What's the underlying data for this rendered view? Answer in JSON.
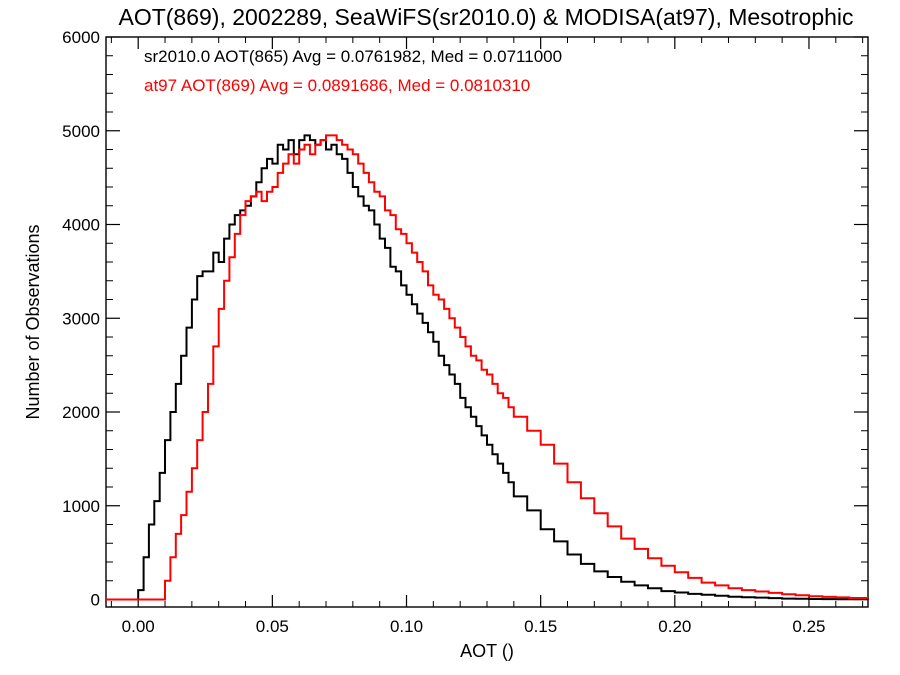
{
  "chart_data": {
    "type": "line",
    "title": "AOT(869), 2002289, SeaWiFS(sr2010.0) & MODISA(at97), Mesotrophic",
    "xlabel": "AOT ()",
    "ylabel": "Number of Observations",
    "xlim": [
      -0.012,
      0.272
    ],
    "ylim": [
      -80,
      6000
    ],
    "xticks": [
      "0.00",
      "0.05",
      "0.10",
      "0.15",
      "0.20",
      "0.25"
    ],
    "yticks": [
      "0",
      "1000",
      "2000",
      "3000",
      "4000",
      "5000",
      "6000"
    ],
    "grid": false,
    "step": true,
    "annotations": [
      {
        "text": "sr2010.0 AOT(865) Avg = 0.0761982, Med = 0.0711000",
        "color": "#000000"
      },
      {
        "text": "at97 AOT(869) Avg = 0.0891686, Med = 0.0810310",
        "color": "#ff0000"
      }
    ],
    "series": [
      {
        "color": "#000000",
        "x": [
          -0.012,
          -0.002,
          0.0,
          0.002,
          0.004,
          0.006,
          0.008,
          0.01,
          0.012,
          0.014,
          0.016,
          0.018,
          0.02,
          0.022,
          0.024,
          0.026,
          0.028,
          0.03,
          0.032,
          0.034,
          0.036,
          0.038,
          0.04,
          0.042,
          0.044,
          0.046,
          0.048,
          0.05,
          0.052,
          0.054,
          0.056,
          0.058,
          0.06,
          0.062,
          0.064,
          0.066,
          0.068,
          0.07,
          0.072,
          0.074,
          0.076,
          0.078,
          0.08,
          0.082,
          0.084,
          0.086,
          0.088,
          0.09,
          0.092,
          0.094,
          0.096,
          0.098,
          0.1,
          0.102,
          0.104,
          0.106,
          0.108,
          0.11,
          0.112,
          0.114,
          0.116,
          0.118,
          0.12,
          0.122,
          0.124,
          0.126,
          0.128,
          0.13,
          0.132,
          0.134,
          0.136,
          0.138,
          0.14,
          0.145,
          0.15,
          0.155,
          0.16,
          0.165,
          0.17,
          0.175,
          0.18,
          0.185,
          0.19,
          0.195,
          0.2,
          0.205,
          0.21,
          0.215,
          0.22,
          0.225,
          0.23,
          0.235,
          0.24,
          0.245,
          0.25,
          0.255,
          0.26,
          0.265,
          0.272
        ],
        "y": [
          0,
          0,
          100,
          450,
          800,
          1050,
          1350,
          1700,
          2000,
          2300,
          2600,
          2900,
          3200,
          3450,
          3500,
          3500,
          3700,
          3600,
          3850,
          4000,
          4100,
          4150,
          4200,
          4300,
          4450,
          4600,
          4700,
          4650,
          4850,
          4800,
          4900,
          4750,
          4900,
          4950,
          4900,
          4850,
          4900,
          4800,
          4850,
          4750,
          4700,
          4550,
          4400,
          4300,
          4200,
          4150,
          4000,
          3850,
          3750,
          3550,
          3500,
          3350,
          3250,
          3150,
          3050,
          2950,
          2850,
          2750,
          2600,
          2500,
          2400,
          2300,
          2150,
          2050,
          1950,
          1850,
          1750,
          1650,
          1550,
          1450,
          1350,
          1250,
          1100,
          950,
          750,
          620,
          480,
          380,
          300,
          240,
          190,
          150,
          120,
          90,
          75,
          60,
          50,
          40,
          30,
          25,
          20,
          15,
          10,
          8,
          5,
          4,
          3,
          2,
          1
        ]
      },
      {
        "color": "#ff0000",
        "x": [
          -0.012,
          0.008,
          0.01,
          0.012,
          0.014,
          0.016,
          0.018,
          0.02,
          0.022,
          0.024,
          0.026,
          0.028,
          0.03,
          0.032,
          0.034,
          0.036,
          0.038,
          0.04,
          0.042,
          0.044,
          0.046,
          0.048,
          0.05,
          0.052,
          0.054,
          0.056,
          0.058,
          0.06,
          0.062,
          0.064,
          0.066,
          0.068,
          0.07,
          0.072,
          0.074,
          0.076,
          0.078,
          0.08,
          0.082,
          0.084,
          0.086,
          0.088,
          0.09,
          0.092,
          0.094,
          0.096,
          0.098,
          0.1,
          0.102,
          0.104,
          0.106,
          0.108,
          0.11,
          0.112,
          0.114,
          0.116,
          0.118,
          0.12,
          0.122,
          0.124,
          0.126,
          0.128,
          0.13,
          0.132,
          0.134,
          0.136,
          0.138,
          0.14,
          0.145,
          0.15,
          0.155,
          0.16,
          0.165,
          0.17,
          0.175,
          0.18,
          0.185,
          0.19,
          0.195,
          0.2,
          0.205,
          0.21,
          0.215,
          0.22,
          0.225,
          0.23,
          0.235,
          0.24,
          0.245,
          0.25,
          0.255,
          0.26,
          0.265,
          0.272
        ],
        "y": [
          0,
          0,
          200,
          450,
          700,
          900,
          1150,
          1400,
          1700,
          2000,
          2300,
          2700,
          3100,
          3400,
          3650,
          3900,
          4100,
          4250,
          4300,
          4350,
          4250,
          4350,
          4400,
          4550,
          4650,
          4750,
          4650,
          4800,
          4850,
          4750,
          4850,
          4900,
          4950,
          4950,
          4900,
          4850,
          4800,
          4750,
          4650,
          4550,
          4450,
          4350,
          4300,
          4150,
          4100,
          3950,
          3900,
          3800,
          3700,
          3600,
          3500,
          3350,
          3250,
          3200,
          3100,
          3000,
          2900,
          2800,
          2700,
          2600,
          2550,
          2450,
          2400,
          2300,
          2200,
          2150,
          2050,
          1950,
          1800,
          1650,
          1450,
          1250,
          1080,
          920,
          780,
          650,
          540,
          440,
          360,
          290,
          230,
          180,
          150,
          120,
          100,
          85,
          70,
          55,
          45,
          35,
          28,
          22,
          16,
          10
        ]
      }
    ]
  }
}
